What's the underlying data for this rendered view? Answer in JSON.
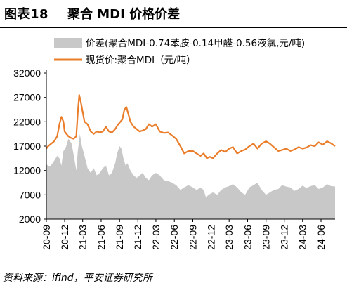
{
  "figure": {
    "number": "图表18",
    "title": "聚合 MDI 价格价差",
    "source": "资料来源：ifind，平安证券研究所"
  },
  "colors": {
    "spread": "#c8c8c8",
    "price": "#ea7d2a",
    "axis": "#000000"
  },
  "chart_data": {
    "type": "area",
    "grid": false,
    "legend_position": "top",
    "y_ticks": [
      2000,
      7000,
      12000,
      17000,
      22000,
      27000,
      32000
    ],
    "ylim": [
      2000,
      32000
    ],
    "x_ticks": [
      "20-09",
      "20-12",
      "21-03",
      "21-06",
      "21-09",
      "21-12",
      "22-03",
      "22-06",
      "22-09",
      "22-12",
      "23-03",
      "23-06",
      "23-09",
      "23-12",
      "24-03",
      "24-06"
    ],
    "x_range": [
      "2020-09-01",
      "2024-08-10"
    ],
    "series": [
      {
        "name": "价差(聚合MDI-0.74苯胺-0.14甲醛-0.56液氯,元/吨)",
        "kind": "area",
        "x": [
          "2020-09-01",
          "2020-09-20",
          "2020-10-10",
          "2020-10-25",
          "2020-11-05",
          "2020-11-15",
          "2020-11-25",
          "2020-12-05",
          "2020-12-20",
          "2021-01-05",
          "2021-01-20",
          "2021-01-28",
          "2021-02-05",
          "2021-02-15",
          "2021-02-25",
          "2021-03-10",
          "2021-03-25",
          "2021-04-10",
          "2021-04-25",
          "2021-05-10",
          "2021-05-25",
          "2021-06-10",
          "2021-06-25",
          "2021-07-10",
          "2021-07-25",
          "2021-08-10",
          "2021-08-20",
          "2021-09-01",
          "2021-09-10",
          "2021-09-20",
          "2021-10-01",
          "2021-10-10",
          "2021-10-25",
          "2021-11-10",
          "2021-11-25",
          "2021-12-10",
          "2021-12-25",
          "2022-01-10",
          "2022-01-25",
          "2022-02-10",
          "2022-03-01",
          "2022-03-20",
          "2022-04-10",
          "2022-05-01",
          "2022-05-20",
          "2022-06-10",
          "2022-07-01",
          "2022-07-20",
          "2022-08-10",
          "2022-09-01",
          "2022-09-20",
          "2022-10-10",
          "2022-10-25",
          "2022-11-05",
          "2022-11-20",
          "2022-12-10",
          "2023-01-01",
          "2023-01-20",
          "2023-02-10",
          "2023-03-01",
          "2023-03-20",
          "2023-04-10",
          "2023-05-01",
          "2023-05-20",
          "2023-06-10",
          "2023-07-01",
          "2023-07-20",
          "2023-08-10",
          "2023-09-01",
          "2023-09-20",
          "2023-10-10",
          "2023-11-01",
          "2023-11-20",
          "2023-12-10",
          "2024-01-01",
          "2024-01-20",
          "2024-02-10",
          "2024-03-01",
          "2024-03-20",
          "2024-04-10",
          "2024-05-01",
          "2024-05-20",
          "2024-06-10",
          "2024-07-01",
          "2024-07-20",
          "2024-08-10"
        ],
        "values": [
          13200,
          12800,
          14000,
          15000,
          14500,
          13000,
          16000,
          16500,
          18500,
          17500,
          14000,
          12000,
          16000,
          19500,
          17000,
          15000,
          12500,
          11500,
          12500,
          11000,
          11500,
          12500,
          13000,
          11000,
          11500,
          13500,
          15500,
          17000,
          16500,
          14500,
          13000,
          13500,
          12000,
          11000,
          10500,
          11000,
          11500,
          10500,
          10000,
          11000,
          11500,
          11000,
          10000,
          9800,
          9500,
          9000,
          8000,
          8500,
          9000,
          8500,
          8000,
          8500,
          8000,
          6500,
          7000,
          7500,
          7000,
          8000,
          8500,
          8800,
          9200,
          8500,
          7500,
          7000,
          8500,
          9000,
          9500,
          8000,
          7000,
          7500,
          8000,
          8200,
          9000,
          8700,
          8500,
          7800,
          8200,
          8900,
          8400,
          8800,
          9000,
          8200,
          8500,
          9200,
          8800,
          8700
        ]
      },
      {
        "name": "现货价:聚合MDI（元/吨）",
        "kind": "line",
        "x": [
          "2020-09-01",
          "2020-09-10",
          "2020-09-25",
          "2020-10-10",
          "2020-10-25",
          "2020-11-05",
          "2020-11-15",
          "2020-11-25",
          "2020-12-01",
          "2020-12-10",
          "2020-12-20",
          "2021-01-01",
          "2021-01-15",
          "2021-01-28",
          "2021-02-05",
          "2021-02-12",
          "2021-02-20",
          "2021-03-01",
          "2021-03-10",
          "2021-03-25",
          "2021-04-10",
          "2021-04-25",
          "2021-05-10",
          "2021-05-25",
          "2021-06-10",
          "2021-06-25",
          "2021-07-10",
          "2021-07-25",
          "2021-08-10",
          "2021-08-25",
          "2021-09-05",
          "2021-09-15",
          "2021-09-25",
          "2021-10-05",
          "2021-10-15",
          "2021-10-25",
          "2021-11-10",
          "2021-11-25",
          "2021-12-10",
          "2021-12-25",
          "2022-01-10",
          "2022-01-25",
          "2022-02-10",
          "2022-03-01",
          "2022-03-20",
          "2022-04-10",
          "2022-05-01",
          "2022-05-20",
          "2022-06-10",
          "2022-07-01",
          "2022-07-20",
          "2022-08-10",
          "2022-09-01",
          "2022-09-20",
          "2022-10-10",
          "2022-10-25",
          "2022-11-10",
          "2022-11-25",
          "2022-12-10",
          "2023-01-01",
          "2023-01-20",
          "2023-02-10",
          "2023-03-01",
          "2023-03-20",
          "2023-04-10",
          "2023-05-01",
          "2023-05-20",
          "2023-06-10",
          "2023-07-01",
          "2023-07-20",
          "2023-08-10",
          "2023-09-01",
          "2023-09-20",
          "2023-10-10",
          "2023-11-01",
          "2023-11-20",
          "2023-12-10",
          "2024-01-01",
          "2024-01-20",
          "2024-02-10",
          "2024-03-01",
          "2024-03-20",
          "2024-04-10",
          "2024-05-01",
          "2024-05-20",
          "2024-06-10",
          "2024-07-01",
          "2024-07-20",
          "2024-08-10"
        ],
        "values": [
          16500,
          17000,
          17500,
          18000,
          19000,
          21500,
          23000,
          22000,
          20000,
          19500,
          19000,
          18700,
          18500,
          19000,
          24000,
          27500,
          26000,
          24000,
          22000,
          21500,
          20000,
          19500,
          20000,
          19800,
          20000,
          21000,
          20000,
          19800,
          20500,
          21500,
          22000,
          22500,
          24500,
          25000,
          23500,
          22000,
          21000,
          20500,
          20000,
          20200,
          20500,
          21500,
          21000,
          21500,
          20000,
          19700,
          19800,
          19200,
          18500,
          17000,
          15500,
          16000,
          16000,
          15500,
          15000,
          15500,
          14500,
          14800,
          14500,
          15500,
          16200,
          15800,
          16500,
          16800,
          15500,
          16000,
          16300,
          17000,
          17500,
          16500,
          17500,
          18000,
          17500,
          16800,
          16000,
          16200,
          16500,
          16000,
          16300,
          16800,
          16500,
          16700,
          17200,
          17000,
          17800,
          17300,
          18000,
          17600,
          17000
        ]
      }
    ]
  }
}
